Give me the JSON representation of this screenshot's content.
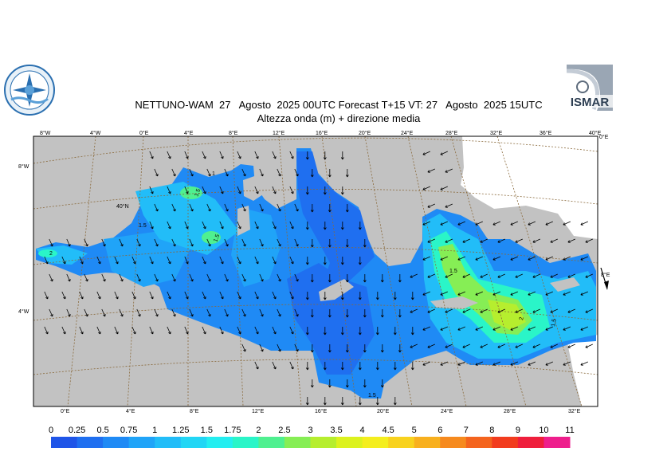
{
  "title": {
    "line1": "NETTUNO-WAM  27   Agosto  2025 00UTC Forecast T+15 VT: 27   Agosto  2025 15UTC",
    "line2": "Altezza onda (m) + direzione media"
  },
  "logos": {
    "left": "meteo-service-seal",
    "right_text": "ISMAR"
  },
  "ticks": {
    "top": [
      "8°W",
      "4°W",
      "0°E",
      "4°E",
      "8°E",
      "12°E",
      "16°E",
      "20°E",
      "24°E",
      "28°E",
      "32°E",
      "36°E",
      "40°E"
    ],
    "bottom": [
      "0°E",
      "4°E",
      "8°E",
      "12°E",
      "16°E",
      "20°E",
      "24°E",
      "28°E",
      "32°E"
    ],
    "left": [
      "8°W",
      "40°N",
      "4°W"
    ],
    "right": [
      "0°E",
      "8°E"
    ]
  },
  "contour_labels": [
    "1.5",
    "1.5",
    "1.5",
    "1.5",
    "2",
    "1.5",
    "1.5",
    "1",
    "2"
  ],
  "colorbar": {
    "labels": [
      "0",
      "0.25",
      "0.5",
      "0.75",
      "1",
      "1.25",
      "1.5",
      "1.75",
      "2",
      "2.5",
      "3",
      "3.5",
      "4",
      "4.5",
      "5",
      "6",
      "7",
      "8",
      "9",
      "10",
      "11"
    ],
    "colors": [
      "#1f55e8",
      "#1f6ff0",
      "#1f8af5",
      "#20a4f8",
      "#22bdf8",
      "#22d6f5",
      "#24eef0",
      "#2af5c8",
      "#4ff090",
      "#86ee55",
      "#b6ee2e",
      "#dcf21e",
      "#f4ee1e",
      "#f8d21e",
      "#f8b01e",
      "#f68a1e",
      "#f4641e",
      "#f23c1e",
      "#ef1e3c",
      "#ee1e8c"
    ]
  }
}
